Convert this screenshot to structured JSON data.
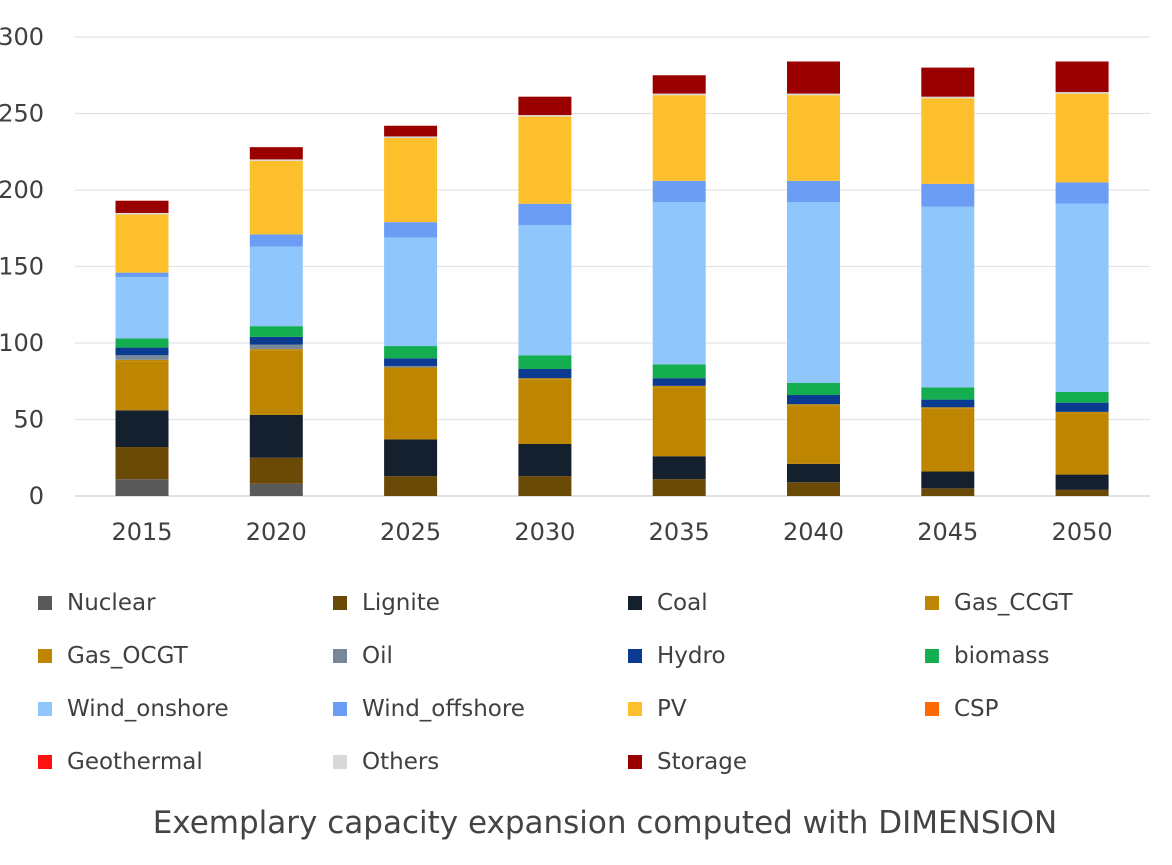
{
  "caption": "Exemplary capacity expansion computed with DIMENSION",
  "chart_data": {
    "type": "bar",
    "stacked": true,
    "title": "",
    "xlabel": "",
    "ylabel": "",
    "ylim": [
      0,
      300
    ],
    "yticks": [
      0,
      50,
      100,
      150,
      200,
      250,
      300
    ],
    "ytick_labels": [
      "0",
      "50",
      "100",
      "150",
      "200",
      "250",
      "300"
    ],
    "grid": true,
    "legend_position": "bottom",
    "categories": [
      "2015",
      "2020",
      "2025",
      "2030",
      "2035",
      "2040",
      "2045",
      "2050"
    ],
    "series": [
      {
        "name": "Nuclear",
        "color": "#595959",
        "values": [
          11,
          8,
          0,
          0,
          0,
          0,
          0,
          0
        ]
      },
      {
        "name": "Lignite",
        "color": "#6b4a08",
        "values": [
          21,
          17,
          13,
          13,
          11,
          9,
          5,
          4
        ]
      },
      {
        "name": "Coal",
        "color": "#14202e",
        "values": [
          24,
          28,
          24,
          21,
          15,
          12,
          11,
          10
        ]
      },
      {
        "name": "Gas_CCGT",
        "color": "#bd8500",
        "values": [
          32,
          42,
          46,
          42,
          45,
          38,
          41,
          40
        ]
      },
      {
        "name": "Gas_OCGT",
        "color": "#bd8500",
        "values": [
          1,
          1,
          1,
          1,
          1,
          1,
          1,
          1
        ]
      },
      {
        "name": "Oil",
        "color": "#778899",
        "values": [
          3,
          3,
          1,
          0,
          0,
          0,
          0,
          0
        ]
      },
      {
        "name": "Hydro",
        "color": "#0b3a91",
        "values": [
          5,
          5,
          5,
          6,
          5,
          6,
          5,
          6
        ]
      },
      {
        "name": "biomass",
        "color": "#14ad50",
        "values": [
          6,
          7,
          8,
          9,
          9,
          8,
          8,
          7
        ]
      },
      {
        "name": "Wind_onshore",
        "color": "#8fc6fb",
        "values": [
          40,
          52,
          71,
          85,
          106,
          118,
          118,
          123
        ]
      },
      {
        "name": "Wind_offshore",
        "color": "#6c9df5",
        "values": [
          3,
          8,
          10,
          14,
          14,
          14,
          15,
          14
        ]
      },
      {
        "name": "PV",
        "color": "#fdbf2c",
        "values": [
          38,
          48,
          55,
          57,
          56,
          56,
          56,
          58
        ]
      },
      {
        "name": "CSP",
        "color": "#ff6a00",
        "values": [
          0,
          0,
          0,
          0,
          0,
          0,
          0,
          0
        ]
      },
      {
        "name": "Geothermal",
        "color": "#ff1111",
        "values": [
          0,
          0,
          0,
          0,
          0,
          0,
          0,
          0
        ]
      },
      {
        "name": "Others",
        "color": "#d9d9d9",
        "values": [
          1,
          1,
          1,
          1,
          1,
          1,
          1,
          1
        ]
      },
      {
        "name": "Storage",
        "color": "#9a0000",
        "values": [
          8,
          8,
          7,
          12,
          12,
          21,
          19,
          20
        ]
      }
    ]
  }
}
